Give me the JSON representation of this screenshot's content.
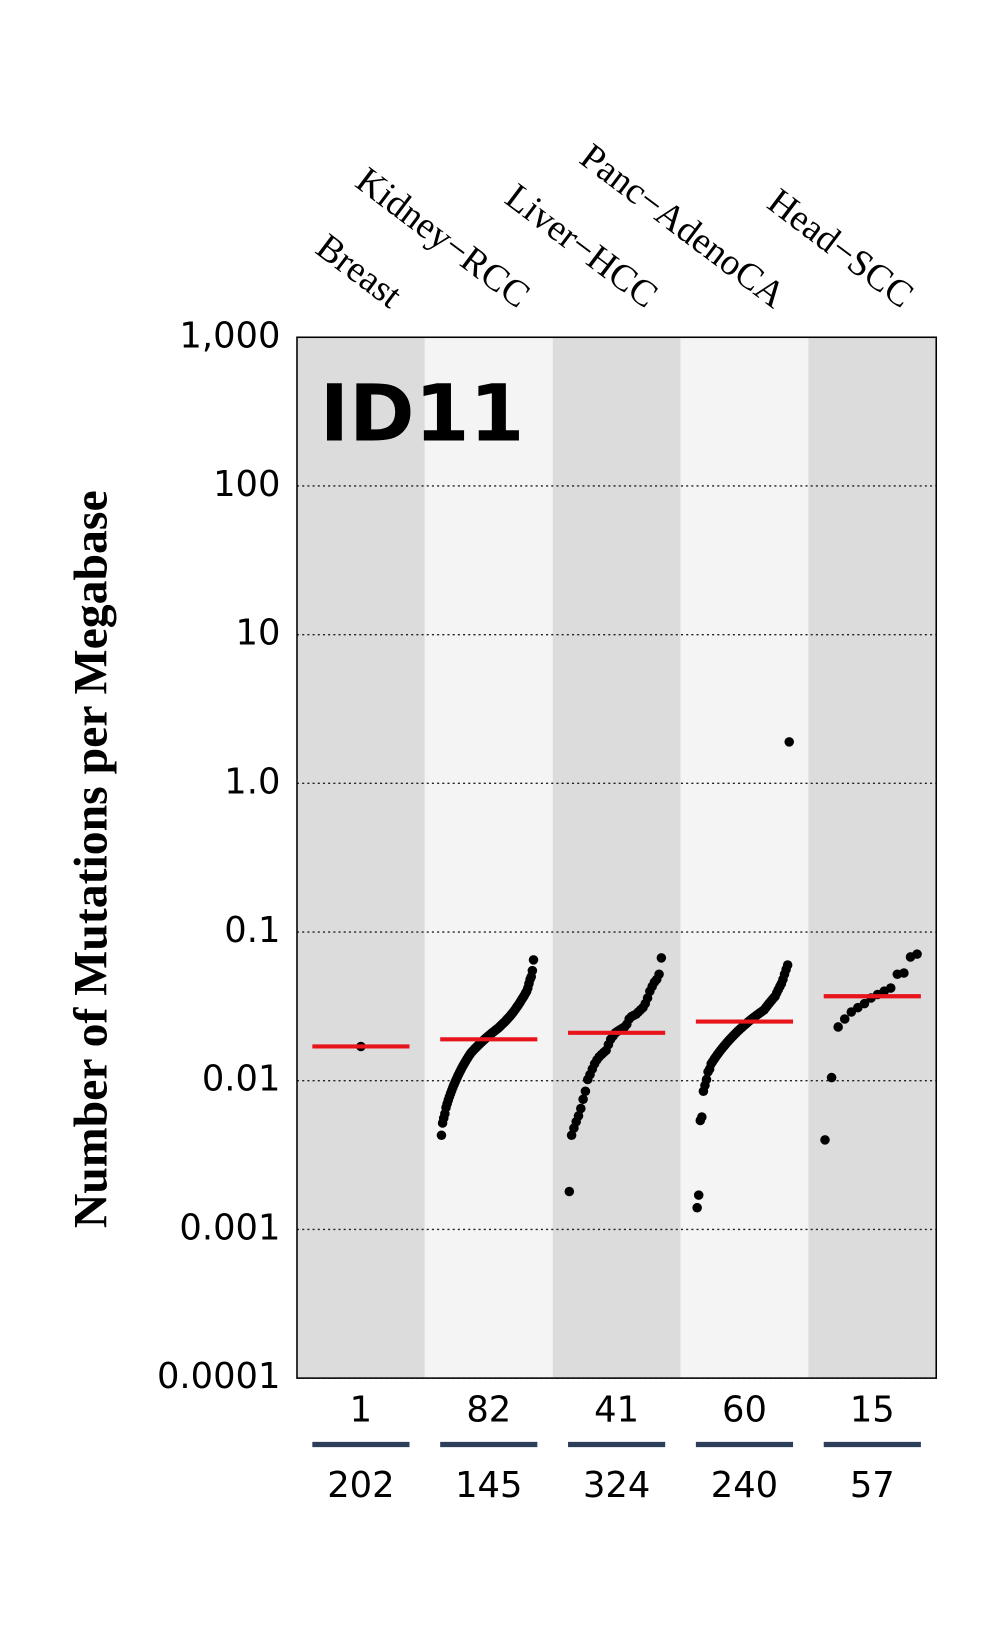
{
  "chart_data": {
    "type": "scatter",
    "title": "ID11",
    "y_label": "Number of Mutations per Megabase",
    "yscale": "log",
    "ylim": [
      0.0001,
      1000
    ],
    "yticks": [
      0.0001,
      0.001,
      0.01,
      0.1,
      {
        "value": 1,
        "label": "1.0"
      },
      10,
      100,
      {
        "value": 1000,
        "label": "1,000"
      }
    ],
    "grid": true,
    "categories": [
      "Breast",
      "Kidney−RCC",
      "Liver−HCC",
      "Panc−AdenoCA",
      "Head−SCC"
    ],
    "band_colors": [
      "#dcdcdc",
      "#f4f4f4"
    ],
    "point_color": "#000000",
    "median_color": "#e8141b",
    "count_line_color": "#2c3e5a",
    "series": [
      {
        "values": [
          0.017
        ]
      },
      {
        "values": [
          0.0043,
          0.0052,
          0.0056,
          0.006,
          0.0066,
          0.007,
          0.0074,
          0.0078,
          0.0082,
          0.0086,
          0.009,
          0.0094,
          0.0098,
          0.0102,
          0.0106,
          0.011,
          0.0114,
          0.0118,
          0.0122,
          0.0126,
          0.013,
          0.0134,
          0.0138,
          0.0142,
          0.0146,
          0.015,
          0.0154,
          0.0157,
          0.016,
          0.0163,
          0.0166,
          0.0169,
          0.0172,
          0.0175,
          0.0178,
          0.0181,
          0.0184,
          0.0187,
          0.019,
          0.0193,
          0.0196,
          0.0199,
          0.0202,
          0.0205,
          0.0208,
          0.0211,
          0.0214,
          0.0217,
          0.022,
          0.0223,
          0.0226,
          0.023,
          0.0234,
          0.0238,
          0.0242,
          0.0246,
          0.025,
          0.0255,
          0.026,
          0.0265,
          0.027,
          0.0276,
          0.0282,
          0.0288,
          0.0295,
          0.0302,
          0.031,
          0.0318,
          0.0326,
          0.0335,
          0.0345,
          0.0355,
          0.0365,
          0.0376,
          0.0388,
          0.04,
          0.042,
          0.045,
          0.048,
          0.05,
          0.055,
          0.065
        ]
      },
      {
        "values": [
          0.0018,
          0.0043,
          0.0048,
          0.0053,
          0.0058,
          0.0065,
          0.0075,
          0.0085,
          0.0102,
          0.011,
          0.012,
          0.013,
          0.0138,
          0.0145,
          0.015,
          0.0155,
          0.016,
          0.0175,
          0.019,
          0.02,
          0.021,
          0.0215,
          0.022,
          0.0225,
          0.023,
          0.024,
          0.026,
          0.027,
          0.0275,
          0.028,
          0.029,
          0.03,
          0.031,
          0.033,
          0.036,
          0.04,
          0.043,
          0.046,
          0.048,
          0.052,
          0.067
        ]
      },
      {
        "values": [
          0.0014,
          0.0017,
          0.0054,
          0.0057,
          0.0085,
          0.0093,
          0.0102,
          0.0115,
          0.012,
          0.013,
          0.0135,
          0.014,
          0.0145,
          0.015,
          0.0155,
          0.016,
          0.0165,
          0.017,
          0.0175,
          0.018,
          0.0185,
          0.019,
          0.0195,
          0.02,
          0.0205,
          0.021,
          0.0215,
          0.022,
          0.0225,
          0.023,
          0.0235,
          0.024,
          0.0245,
          0.025,
          0.0255,
          0.026,
          0.0265,
          0.027,
          0.0275,
          0.028,
          0.0285,
          0.029,
          0.0295,
          0.03,
          0.031,
          0.032,
          0.033,
          0.034,
          0.035,
          0.036,
          0.037,
          0.039,
          0.041,
          0.043,
          0.045,
          0.048,
          0.052,
          0.056,
          0.06,
          1.9
        ]
      },
      {
        "values": [
          0.004,
          0.0105,
          0.023,
          0.026,
          0.029,
          0.031,
          0.033,
          0.036,
          0.038,
          0.04,
          0.042,
          0.052,
          0.053,
          0.068,
          0.071
        ]
      }
    ],
    "medians": [
      0.017,
      0.019,
      0.021,
      0.025,
      0.037
    ],
    "samples_with_signature": [
      1,
      82,
      41,
      60,
      15
    ],
    "total_samples": [
      202,
      145,
      324,
      240,
      57
    ]
  }
}
